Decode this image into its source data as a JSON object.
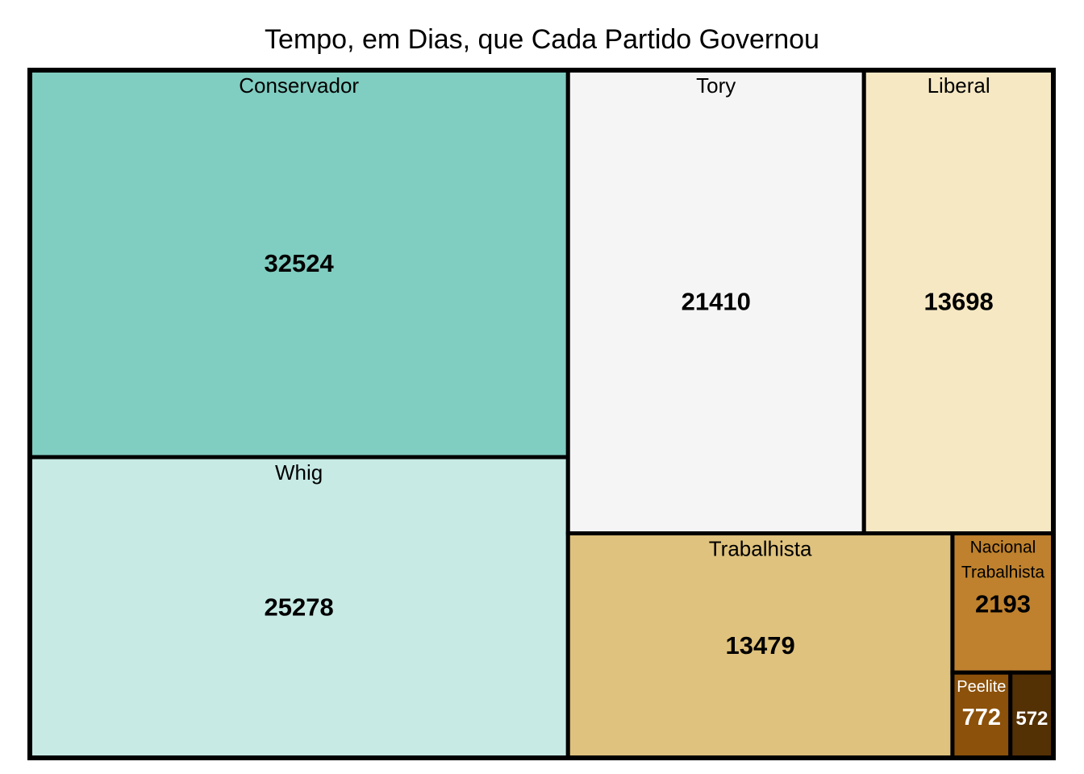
{
  "chart_data": {
    "type": "treemap",
    "title": "Tempo, em Dias, que Cada Partido Governou",
    "items": [
      {
        "label": "Conservador",
        "value": 32524,
        "color": "#80CDC1"
      },
      {
        "label": "Whig",
        "value": 25278,
        "color": "#C7EAE5"
      },
      {
        "label": "Tory",
        "value": 21410,
        "color": "#F5F5F5"
      },
      {
        "label": "Liberal",
        "value": 13698,
        "color": "#F6E8C3"
      },
      {
        "label": "Trabalhista",
        "value": 13479,
        "color": "#DFC27D"
      },
      {
        "label": "Nacional Trabalhista",
        "value": 2193,
        "color": "#BF812D"
      },
      {
        "label": "Peelite",
        "value": 772,
        "color": "#8C510A"
      },
      {
        "label": "",
        "value": 572,
        "color": "#543005"
      }
    ]
  }
}
